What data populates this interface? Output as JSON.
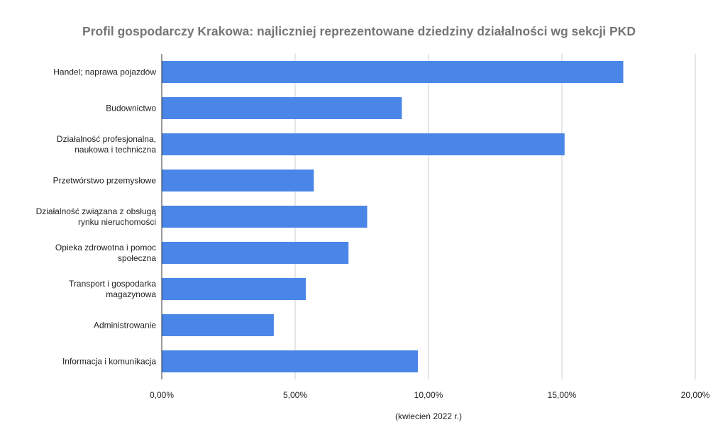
{
  "chart_data": {
    "type": "bar",
    "orientation": "horizontal",
    "title": "Profil gospodarczy Krakowa: najliczniej reprezentowane dziedziny działalności wg sekcji PKD",
    "xlabel": "(kwiecień 2022 r.)",
    "ylabel": "",
    "categories": [
      [
        "Handel; naprawa pojazdów"
      ],
      [
        "Budownictwo"
      ],
      [
        "Działalność profesjonalna,",
        "naukowa i techniczna"
      ],
      [
        "Przetwórstwo przemysłowe"
      ],
      [
        "Działalność związana z obsługą",
        "rynku nieruchomości"
      ],
      [
        "Opieka zdrowotna i pomoc",
        "społeczna"
      ],
      [
        "Transport i gospodarka",
        "magazynowa"
      ],
      [
        "Administrowanie"
      ],
      [
        "Informacja i komunikacja"
      ]
    ],
    "values": [
      17.3,
      9.0,
      15.1,
      5.7,
      7.7,
      7.0,
      5.4,
      4.2,
      9.6
    ],
    "xlim": [
      0,
      20
    ],
    "ticks": [
      {
        "value": 0,
        "label": "0,00%"
      },
      {
        "value": 5,
        "label": "5,00%"
      },
      {
        "value": 10,
        "label": "10,00%"
      },
      {
        "value": 15,
        "label": "15,00%"
      },
      {
        "value": 20,
        "label": "20,00%"
      }
    ],
    "grid": true,
    "legend": "none",
    "colors": {
      "bar": "#4a86e8",
      "grid": "#cccccc",
      "axis": "#333333",
      "title": "#757575"
    }
  }
}
